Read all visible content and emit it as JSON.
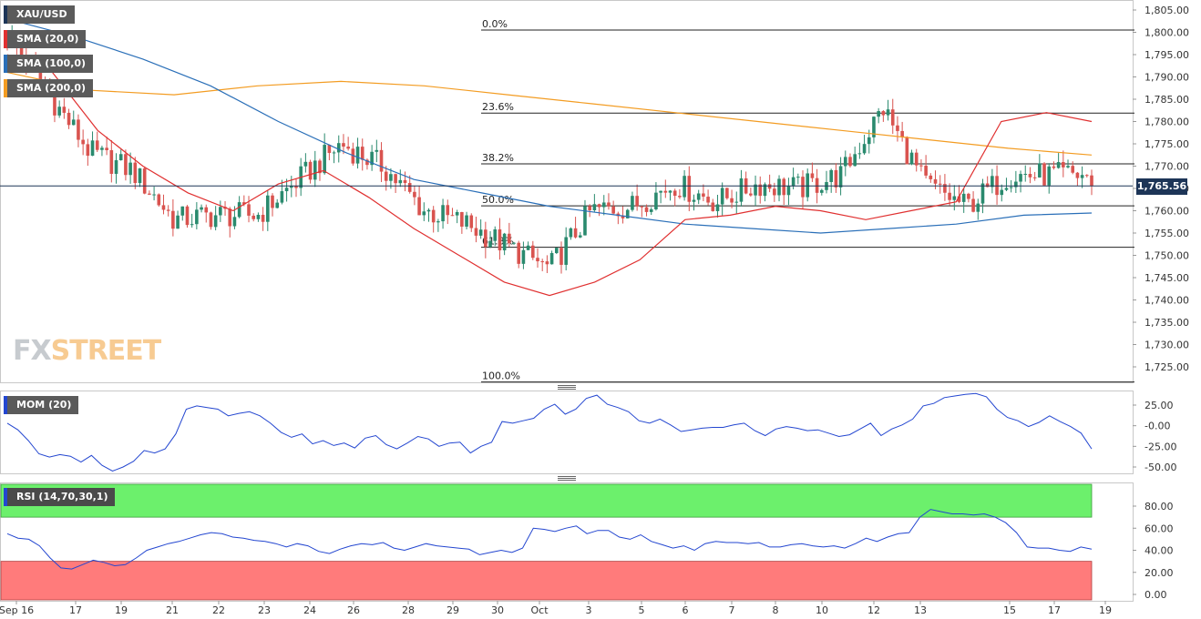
{
  "symbol": "XAU/USD",
  "legend": {
    "sma20": "SMA (20,0)",
    "sma100": "SMA (100,0)",
    "sma200": "SMA (200,0)",
    "mom": "MOM (20)",
    "rsi": "RSI (14,70,30,1)"
  },
  "watermark": {
    "fx": "FX",
    "street": "STREET"
  },
  "colors": {
    "up": "#2a8a6e",
    "down": "#d9534f",
    "sma20": "#e03030",
    "sma100": "#2a6fb8",
    "sma200": "#f39c22",
    "line": "#2346d0",
    "overbought": "#6cf06c",
    "oversold": "#ff7b7b"
  },
  "last_price_label": "1,765.56",
  "chart_data": [
    {
      "type": "candlestick",
      "title": "XAU/USD",
      "ylim": [
        1721,
        1807
      ],
      "yticks": [
        1725,
        1730,
        1735,
        1740,
        1745,
        1750,
        1755,
        1760,
        1765,
        1770,
        1775,
        1780,
        1785,
        1790,
        1795,
        1800,
        1805
      ],
      "ytick_labels": [
        "1,725.00",
        "1,730.00",
        "1,735.00",
        "1,740.00",
        "1,745.00",
        "1,750.00",
        "1,755.00",
        "1,760.00",
        "1,765.00",
        "1,770.00",
        "1,775.00",
        "1,780.00",
        "1,785.00",
        "1,790.00",
        "1,795.00",
        "1,800.00",
        "1,805.00"
      ],
      "x_labels": [
        "Sep 16",
        "17",
        "19",
        "21",
        "22",
        "23",
        "24",
        "26",
        "28",
        "29",
        "30",
        "Oct",
        "3",
        "5",
        "6",
        "7",
        "8",
        "10",
        "12",
        "13",
        "15",
        "17",
        "19"
      ],
      "last_price": 1765.56,
      "fibonacci": [
        {
          "label": "0.0%",
          "value": 1800.5
        },
        {
          "label": "23.6%",
          "value": 1781.9
        },
        {
          "label": "38.2%",
          "value": 1770.5
        },
        {
          "label": "50.0%",
          "value": 1761.1
        },
        {
          "label": "61.8%",
          "value": 1751.8
        },
        {
          "label": "100.0%",
          "value": 1721.6
        }
      ],
      "anchors": [
        [
          1799.5,
          1786,
          1773,
          1769,
          1758,
          1759,
          1759,
          1767,
          1775,
          1770,
          1760,
          1757,
          1752,
          1747,
          1760,
          1761,
          1766,
          1762,
          1766,
          1765,
          1768,
          1783,
          1766,
          1761,
          1768,
          1768,
          1768
        ],
        [
          1765,
          1762,
          1755,
          1753,
          1758,
          1766,
          1763,
          1766,
          1760,
          1758,
          1754,
          1752,
          1752,
          1754,
          1756,
          1758,
          1757,
          1760,
          1763,
          1764,
          1797,
          1790,
          1772,
          1770,
          1768,
          1766,
          1765.5
        ]
      ],
      "sma20": [
        1795,
        1791,
        1778,
        1770,
        1764,
        1760,
        1766,
        1769,
        1763,
        1756,
        1750,
        1744,
        1741,
        1744,
        1749,
        1758,
        1759,
        1761,
        1760,
        1758,
        1760,
        1762,
        1780,
        1782,
        1780
      ],
      "sma100": [
        1803,
        1799,
        1794,
        1788,
        1780,
        1773,
        1767,
        1764,
        1761,
        1759,
        1757,
        1756,
        1755,
        1756,
        1757,
        1759,
        1759.5
      ],
      "sma200": [
        1791,
        1787,
        1786,
        1788,
        1789,
        1788,
        1786,
        1784,
        1782,
        1780,
        1778,
        1776,
        1774,
        1772.5
      ]
    },
    {
      "type": "line",
      "title": "MOM (20)",
      "ylim": [
        -57,
        42
      ],
      "yticks": [
        25,
        0,
        -25,
        -50
      ],
      "ytick_labels": [
        "25.00",
        "-0.00",
        "-25.00",
        "-50.00"
      ],
      "values": [
        3,
        -5,
        -18,
        -34,
        -38,
        -35,
        -37,
        -44,
        -36,
        -48,
        -55,
        -50,
        -43,
        -30,
        -33,
        -28,
        -10,
        20,
        24,
        22,
        20,
        12,
        15,
        17,
        12,
        3,
        -8,
        -14,
        -10,
        -22,
        -18,
        -24,
        -21,
        -27,
        -15,
        -12,
        -23,
        -28,
        -21,
        -13,
        -16,
        -25,
        -21,
        -20,
        -33,
        -25,
        -20,
        5,
        3,
        6,
        9,
        20,
        26,
        14,
        20,
        33,
        37,
        26,
        22,
        17,
        6,
        3,
        8,
        1,
        -7,
        -5,
        -3,
        -2,
        -2,
        1,
        3,
        -6,
        -12,
        -4,
        -1,
        -3,
        -6,
        -5,
        -9,
        -13,
        -11,
        -4,
        3,
        -12,
        -4,
        1,
        8,
        24,
        27,
        34,
        36,
        38,
        39,
        35,
        20,
        10,
        6,
        -1,
        4,
        12,
        5,
        -1,
        -9,
        -28
      ]
    },
    {
      "type": "line",
      "title": "RSI (14,70,30,1)",
      "ylim": [
        0,
        100
      ],
      "yticks": [
        80,
        60,
        40,
        20,
        0
      ],
      "ytick_labels": [
        "80.00",
        "60.00",
        "40.00",
        "20.00",
        "0.00"
      ],
      "bands": {
        "overbought": 70,
        "oversold": 30
      },
      "values": [
        55,
        51,
        50,
        44,
        33,
        24,
        23,
        27,
        31,
        29,
        26,
        27,
        33,
        40,
        43,
        46,
        48,
        51,
        54,
        56,
        55,
        52,
        51,
        49,
        48,
        46,
        43,
        46,
        44,
        39,
        37,
        41,
        44,
        46,
        45,
        47,
        42,
        40,
        43,
        46,
        44,
        43,
        42,
        41,
        36,
        38,
        40,
        38,
        42,
        60,
        59,
        57,
        60,
        62,
        55,
        58,
        58,
        52,
        50,
        54,
        48,
        45,
        42,
        44,
        40,
        46,
        48,
        47,
        47,
        46,
        47,
        43,
        43,
        45,
        46,
        44,
        43,
        44,
        42,
        46,
        51,
        48,
        52,
        55,
        56,
        70,
        77,
        75,
        73,
        73,
        72,
        73,
        70,
        65,
        56,
        43,
        42,
        42,
        40,
        39,
        43,
        41
      ]
    }
  ]
}
